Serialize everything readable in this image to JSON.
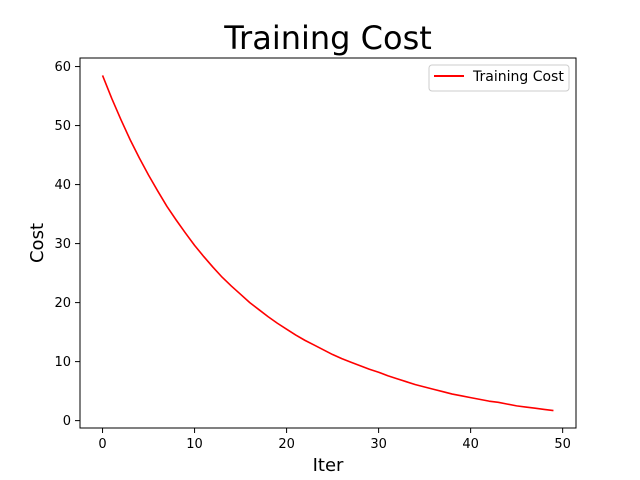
{
  "chart_data": {
    "type": "line",
    "title": "Training Cost",
    "xlabel": "Iter",
    "ylabel": "Cost",
    "xlim": [
      -2.45,
      51.45
    ],
    "ylim": [
      -1.25,
      61.45
    ],
    "xticks": [
      0,
      10,
      20,
      30,
      40,
      50
    ],
    "yticks": [
      0,
      10,
      20,
      30,
      40,
      50,
      60
    ],
    "grid": false,
    "legend_position": "top-right",
    "series": [
      {
        "name": "Training Cost",
        "color": "#ff0000",
        "x": [
          0,
          1,
          2,
          3,
          4,
          5,
          6,
          7,
          8,
          9,
          10,
          11,
          12,
          13,
          14,
          15,
          16,
          17,
          18,
          19,
          20,
          21,
          22,
          23,
          24,
          25,
          26,
          27,
          28,
          29,
          30,
          31,
          32,
          33,
          34,
          35,
          36,
          37,
          38,
          39,
          40,
          41,
          42,
          43,
          44,
          45,
          46,
          47,
          48,
          49
        ],
        "y": [
          58.5,
          54.6,
          51.0,
          47.6,
          44.5,
          41.6,
          38.9,
          36.3,
          34.0,
          31.8,
          29.7,
          27.8,
          26.0,
          24.3,
          22.8,
          21.4,
          20.0,
          18.8,
          17.6,
          16.5,
          15.5,
          14.5,
          13.6,
          12.8,
          12.0,
          11.2,
          10.5,
          9.9,
          9.3,
          8.7,
          8.2,
          7.6,
          7.1,
          6.6,
          6.1,
          5.7,
          5.3,
          4.9,
          4.5,
          4.2,
          3.9,
          3.6,
          3.3,
          3.1,
          2.8,
          2.5,
          2.3,
          2.1,
          1.9,
          1.7
        ]
      }
    ]
  }
}
